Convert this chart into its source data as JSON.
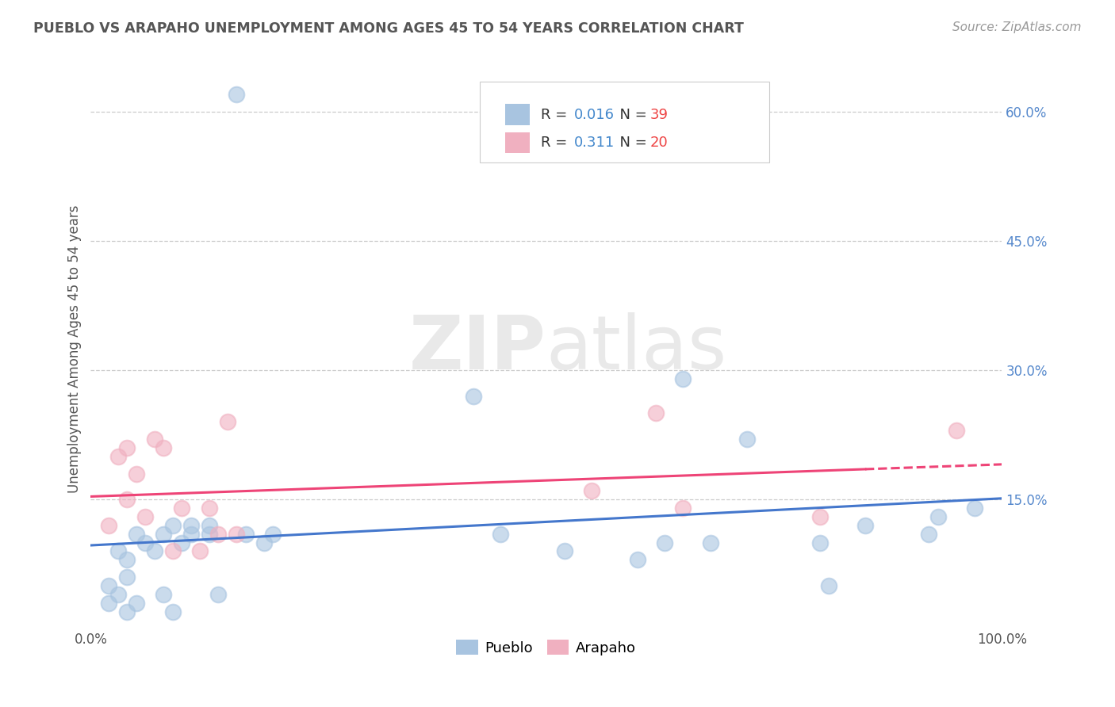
{
  "title": "PUEBLO VS ARAPAHO UNEMPLOYMENT AMONG AGES 45 TO 54 YEARS CORRELATION CHART",
  "source": "Source: ZipAtlas.com",
  "xlabel": "",
  "ylabel": "Unemployment Among Ages 45 to 54 years",
  "xlim": [
    0.0,
    1.0
  ],
  "ylim": [
    0.0,
    0.65
  ],
  "xtick_labels": [
    "0.0%",
    "100.0%"
  ],
  "ytick_values": [
    0.15,
    0.3,
    0.45,
    0.6
  ],
  "legend_r_pueblo": "0.016",
  "legend_n_pueblo": "39",
  "legend_r_arapaho": "0.311",
  "legend_n_arapaho": "20",
  "pueblo_color": "#a8c4e0",
  "arapaho_color": "#f0b0c0",
  "pueblo_line_color": "#4477cc",
  "arapaho_line_color": "#ee4477",
  "background_color": "#ffffff",
  "watermark_zip": "ZIP",
  "watermark_atlas": "atlas",
  "pueblo_x": [
    0.02,
    0.02,
    0.03,
    0.03,
    0.04,
    0.04,
    0.04,
    0.05,
    0.05,
    0.06,
    0.07,
    0.08,
    0.08,
    0.09,
    0.09,
    0.1,
    0.11,
    0.11,
    0.13,
    0.13,
    0.14,
    0.16,
    0.17,
    0.19,
    0.2,
    0.42,
    0.45,
    0.52,
    0.6,
    0.63,
    0.65,
    0.68,
    0.72,
    0.8,
    0.81,
    0.85,
    0.92,
    0.93,
    0.97
  ],
  "pueblo_y": [
    0.03,
    0.05,
    0.04,
    0.09,
    0.02,
    0.06,
    0.08,
    0.03,
    0.11,
    0.1,
    0.09,
    0.04,
    0.11,
    0.02,
    0.12,
    0.1,
    0.11,
    0.12,
    0.11,
    0.12,
    0.04,
    0.62,
    0.11,
    0.1,
    0.11,
    0.27,
    0.11,
    0.09,
    0.08,
    0.1,
    0.29,
    0.1,
    0.22,
    0.1,
    0.05,
    0.12,
    0.11,
    0.13,
    0.14
  ],
  "arapaho_x": [
    0.02,
    0.03,
    0.04,
    0.04,
    0.05,
    0.06,
    0.07,
    0.08,
    0.09,
    0.1,
    0.12,
    0.13,
    0.14,
    0.15,
    0.16,
    0.55,
    0.62,
    0.65,
    0.8,
    0.95
  ],
  "arapaho_y": [
    0.12,
    0.2,
    0.21,
    0.15,
    0.18,
    0.13,
    0.22,
    0.21,
    0.09,
    0.14,
    0.09,
    0.14,
    0.11,
    0.24,
    0.11,
    0.16,
    0.25,
    0.14,
    0.13,
    0.23
  ]
}
